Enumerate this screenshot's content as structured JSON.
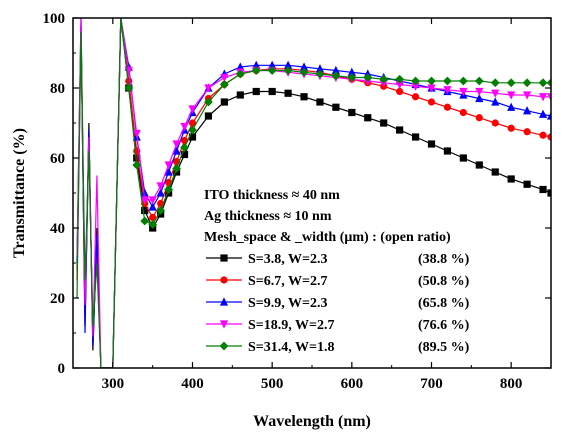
{
  "chart_data": {
    "type": "line",
    "xlabel": "Wavelength (nm)",
    "ylabel": "Transmittance (%)",
    "xlim": [
      250,
      850
    ],
    "ylim": [
      0,
      100
    ],
    "x_ticks": [
      300,
      400,
      500,
      600,
      700,
      800
    ],
    "y_ticks": [
      0,
      20,
      40,
      60,
      80,
      100
    ],
    "grid": false,
    "legend_position": "bottom-right",
    "annotations": [
      "ITO thickness ≈ 40 nm",
      "Ag thickness  ≈ 10 nm",
      "Mesh_space & _width (μm) :  (open ratio)"
    ],
    "x": [
      255,
      260,
      265,
      270,
      275,
      280,
      285,
      290,
      295,
      300,
      310,
      320,
      330,
      340,
      350,
      360,
      370,
      380,
      390,
      400,
      420,
      440,
      460,
      480,
      500,
      520,
      540,
      560,
      580,
      600,
      620,
      640,
      660,
      680,
      700,
      720,
      740,
      760,
      780,
      800,
      820,
      840,
      850
    ],
    "series": [
      {
        "name": "S=3.8,   W=2.3",
        "open_ratio": "(38.8 %)",
        "color": "#000000",
        "marker": "square",
        "values": [
          28,
          98,
          12,
          70,
          5,
          40,
          0,
          0,
          0,
          0,
          100,
          80,
          60,
          45,
          40,
          44,
          50,
          56,
          61,
          66,
          72,
          76,
          78,
          79,
          79,
          78.5,
          77.5,
          76,
          74.5,
          73,
          71.5,
          70,
          68,
          66,
          64,
          62,
          60,
          58,
          56,
          54,
          52.5,
          51,
          50
        ]
      },
      {
        "name": "S=6.7,   W=2.7",
        "open_ratio": "(50.8 %)",
        "color": "#ff0000",
        "marker": "circle",
        "values": [
          25,
          96,
          15,
          65,
          8,
          35,
          0,
          0,
          0,
          0,
          100,
          82,
          62,
          47,
          43,
          47,
          53,
          59,
          65,
          70,
          77,
          81,
          84,
          85,
          85.5,
          85.5,
          85,
          84.5,
          83.5,
          82.5,
          81.5,
          80.5,
          79,
          77.5,
          76,
          74.5,
          73,
          71.5,
          70,
          68.5,
          67.5,
          66.5,
          66
        ]
      },
      {
        "name": "S=9.9,   W=2.3",
        "open_ratio": "(65.8 %)",
        "color": "#0000ff",
        "marker": "triangle-up",
        "values": [
          30,
          100,
          10,
          68,
          6,
          38,
          0,
          0,
          0,
          0,
          100,
          86,
          66,
          50,
          46,
          50,
          56,
          62,
          68,
          73,
          80,
          84,
          86,
          86.5,
          86.5,
          86.5,
          86,
          85.5,
          85,
          84.5,
          84,
          83,
          82,
          81,
          80,
          79,
          78,
          77,
          76,
          74.5,
          73.5,
          72.5,
          72
        ]
      },
      {
        "name": "S=18.9, W=2.7",
        "open_ratio": "(76.6 %)",
        "color": "#ff00ff",
        "marker": "triangle-down",
        "values": [
          32,
          100,
          18,
          66,
          9,
          55,
          0,
          0,
          0,
          0,
          100,
          85,
          67,
          48,
          48,
          52,
          58,
          64,
          69,
          74,
          80,
          83,
          84.5,
          85,
          85,
          84.5,
          84,
          83.5,
          83,
          82.5,
          82,
          81.5,
          81,
          80.5,
          80,
          79.5,
          79,
          79,
          78.5,
          78,
          78,
          77.5,
          77.5
        ]
      },
      {
        "name": "S=31.4, W=1.8",
        "open_ratio": "(89.5 %)",
        "color": "#008000",
        "marker": "diamond",
        "values": [
          20,
          96,
          25,
          62,
          12,
          30,
          0,
          0,
          0,
          0,
          100,
          80,
          58,
          42,
          41,
          45,
          51,
          57,
          63,
          68,
          76,
          81,
          84,
          85,
          85,
          85,
          84.5,
          84,
          83.5,
          83,
          83,
          82.5,
          82.5,
          82,
          82,
          82,
          82,
          82,
          81.5,
          81.5,
          81.5,
          81.5,
          81.5
        ]
      }
    ]
  }
}
